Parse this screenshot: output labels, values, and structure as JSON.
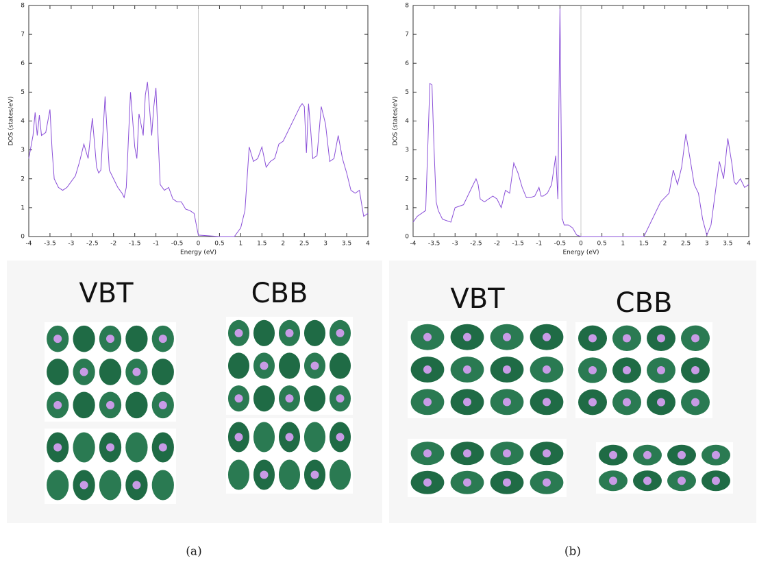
{
  "chart_data": [
    {
      "type": "line",
      "x_label": "Energy (eV)",
      "y_label": "DOS (states/eV)",
      "color": "#8a4fd8",
      "vline": 0,
      "xlim": [
        -4,
        4
      ],
      "ylim": [
        0,
        8
      ],
      "xticks": [
        -4,
        -3.5,
        -3,
        -2.5,
        -2,
        -1.5,
        -1,
        -0.5,
        0,
        0.5,
        1,
        1.5,
        2,
        2.5,
        3,
        3.5,
        4
      ],
      "yticks": [
        0,
        1,
        2,
        3,
        4,
        5,
        6,
        7,
        8
      ],
      "x": [
        -4,
        -3.9,
        -3.85,
        -3.8,
        -3.75,
        -3.7,
        -3.6,
        -3.5,
        -3.45,
        -3.4,
        -3.3,
        -3.2,
        -3.1,
        -3,
        -2.9,
        -2.8,
        -2.7,
        -2.6,
        -2.5,
        -2.4,
        -2.35,
        -2.3,
        -2.2,
        -2.1,
        -2,
        -1.9,
        -1.8,
        -1.75,
        -1.7,
        -1.6,
        -1.5,
        -1.45,
        -1.4,
        -1.3,
        -1.25,
        -1.2,
        -1.1,
        -1.05,
        -1,
        -0.9,
        -0.8,
        -0.7,
        -0.6,
        -0.5,
        -0.4,
        -0.3,
        -0.2,
        -0.1,
        0,
        0.5,
        0.85,
        1,
        1.1,
        1.2,
        1.3,
        1.4,
        1.5,
        1.6,
        1.7,
        1.8,
        1.9,
        2,
        2.1,
        2.2,
        2.3,
        2.4,
        2.45,
        2.5,
        2.55,
        2.6,
        2.65,
        2.7,
        2.8,
        2.9,
        3,
        3.1,
        3.2,
        3.3,
        3.4,
        3.5,
        3.6,
        3.7,
        3.8,
        3.9,
        4
      ],
      "values": [
        2.7,
        3.5,
        4.3,
        3.5,
        4.2,
        3.5,
        3.6,
        4.4,
        3.0,
        2.0,
        1.7,
        1.6,
        1.7,
        1.9,
        2.1,
        2.6,
        3.2,
        2.7,
        4.1,
        2.4,
        2.2,
        2.3,
        4.85,
        2.3,
        2.0,
        1.7,
        1.5,
        1.35,
        1.7,
        5.0,
        3.1,
        2.7,
        4.25,
        3.5,
        4.9,
        5.35,
        3.5,
        4.5,
        5.15,
        1.8,
        1.6,
        1.7,
        1.3,
        1.2,
        1.2,
        0.95,
        0.9,
        0.8,
        0.05,
        0,
        0,
        0.3,
        0.9,
        3.1,
        2.6,
        2.7,
        3.1,
        2.4,
        2.6,
        2.7,
        3.2,
        3.3,
        3.6,
        3.9,
        4.2,
        4.5,
        4.6,
        4.5,
        2.9,
        4.6,
        3.7,
        2.7,
        2.8,
        4.5,
        3.9,
        2.6,
        2.7,
        3.5,
        2.7,
        2.2,
        1.6,
        1.5,
        1.6,
        0.7,
        0.8
      ]
    },
    {
      "type": "line",
      "x_label": "Energy (eV)",
      "y_label": "DOS (states/eV)",
      "color": "#8a4fd8",
      "vline": 0,
      "xlim": [
        -4,
        4
      ],
      "ylim": [
        0,
        8
      ],
      "xticks": [
        -4,
        -3.5,
        -3,
        -2.5,
        -2,
        -1.5,
        -1,
        -0.5,
        0,
        0.5,
        1,
        1.5,
        2,
        2.5,
        3,
        3.5,
        4
      ],
      "yticks": [
        0,
        1,
        2,
        3,
        4,
        5,
        6,
        7,
        8
      ],
      "x": [
        -4,
        -3.9,
        -3.7,
        -3.6,
        -3.55,
        -3.5,
        -3.45,
        -3.4,
        -3.3,
        -3.1,
        -3,
        -2.8,
        -2.6,
        -2.5,
        -2.45,
        -2.4,
        -2.3,
        -2.1,
        -2,
        -1.9,
        -1.8,
        -1.7,
        -1.6,
        -1.5,
        -1.4,
        -1.3,
        -1.2,
        -1.1,
        -1,
        -0.95,
        -0.9,
        -0.8,
        -0.7,
        -0.6,
        -0.55,
        -0.5,
        -0.45,
        -0.44,
        -0.4,
        -0.3,
        -0.2,
        -0.1,
        0,
        0.5,
        1,
        1.5,
        1.7,
        1.9,
        2.1,
        2.2,
        2.3,
        2.4,
        2.5,
        2.6,
        2.7,
        2.8,
        2.9,
        3,
        3.1,
        3.3,
        3.4,
        3.5,
        3.6,
        3.65,
        3.7,
        3.8,
        3.9,
        4
      ],
      "values": [
        0.5,
        0.7,
        0.9,
        5.3,
        5.25,
        3,
        1.2,
        0.9,
        0.6,
        0.5,
        1.0,
        1.1,
        1.7,
        2.0,
        1.8,
        1.3,
        1.2,
        1.4,
        1.3,
        1.0,
        1.6,
        1.5,
        2.55,
        2.2,
        1.7,
        1.35,
        1.35,
        1.4,
        1.7,
        1.4,
        1.4,
        1.5,
        1.8,
        2.8,
        1.3,
        7.9,
        0.6,
        0.6,
        0.4,
        0.4,
        0.3,
        0.05,
        0,
        0,
        0,
        0,
        0.6,
        1.2,
        1.5,
        2.3,
        1.8,
        2.4,
        3.55,
        2.7,
        1.8,
        1.5,
        0.6,
        0.05,
        0.4,
        2.6,
        2.0,
        3.4,
        2.5,
        1.9,
        1.8,
        2.0,
        1.7,
        1.8
      ]
    }
  ],
  "panels": [
    {
      "labels": [
        "VBT",
        "CBB"
      ],
      "caption": "(a)"
    },
    {
      "labels": [
        "VBT",
        "CBB"
      ],
      "caption": "(b)"
    }
  ]
}
